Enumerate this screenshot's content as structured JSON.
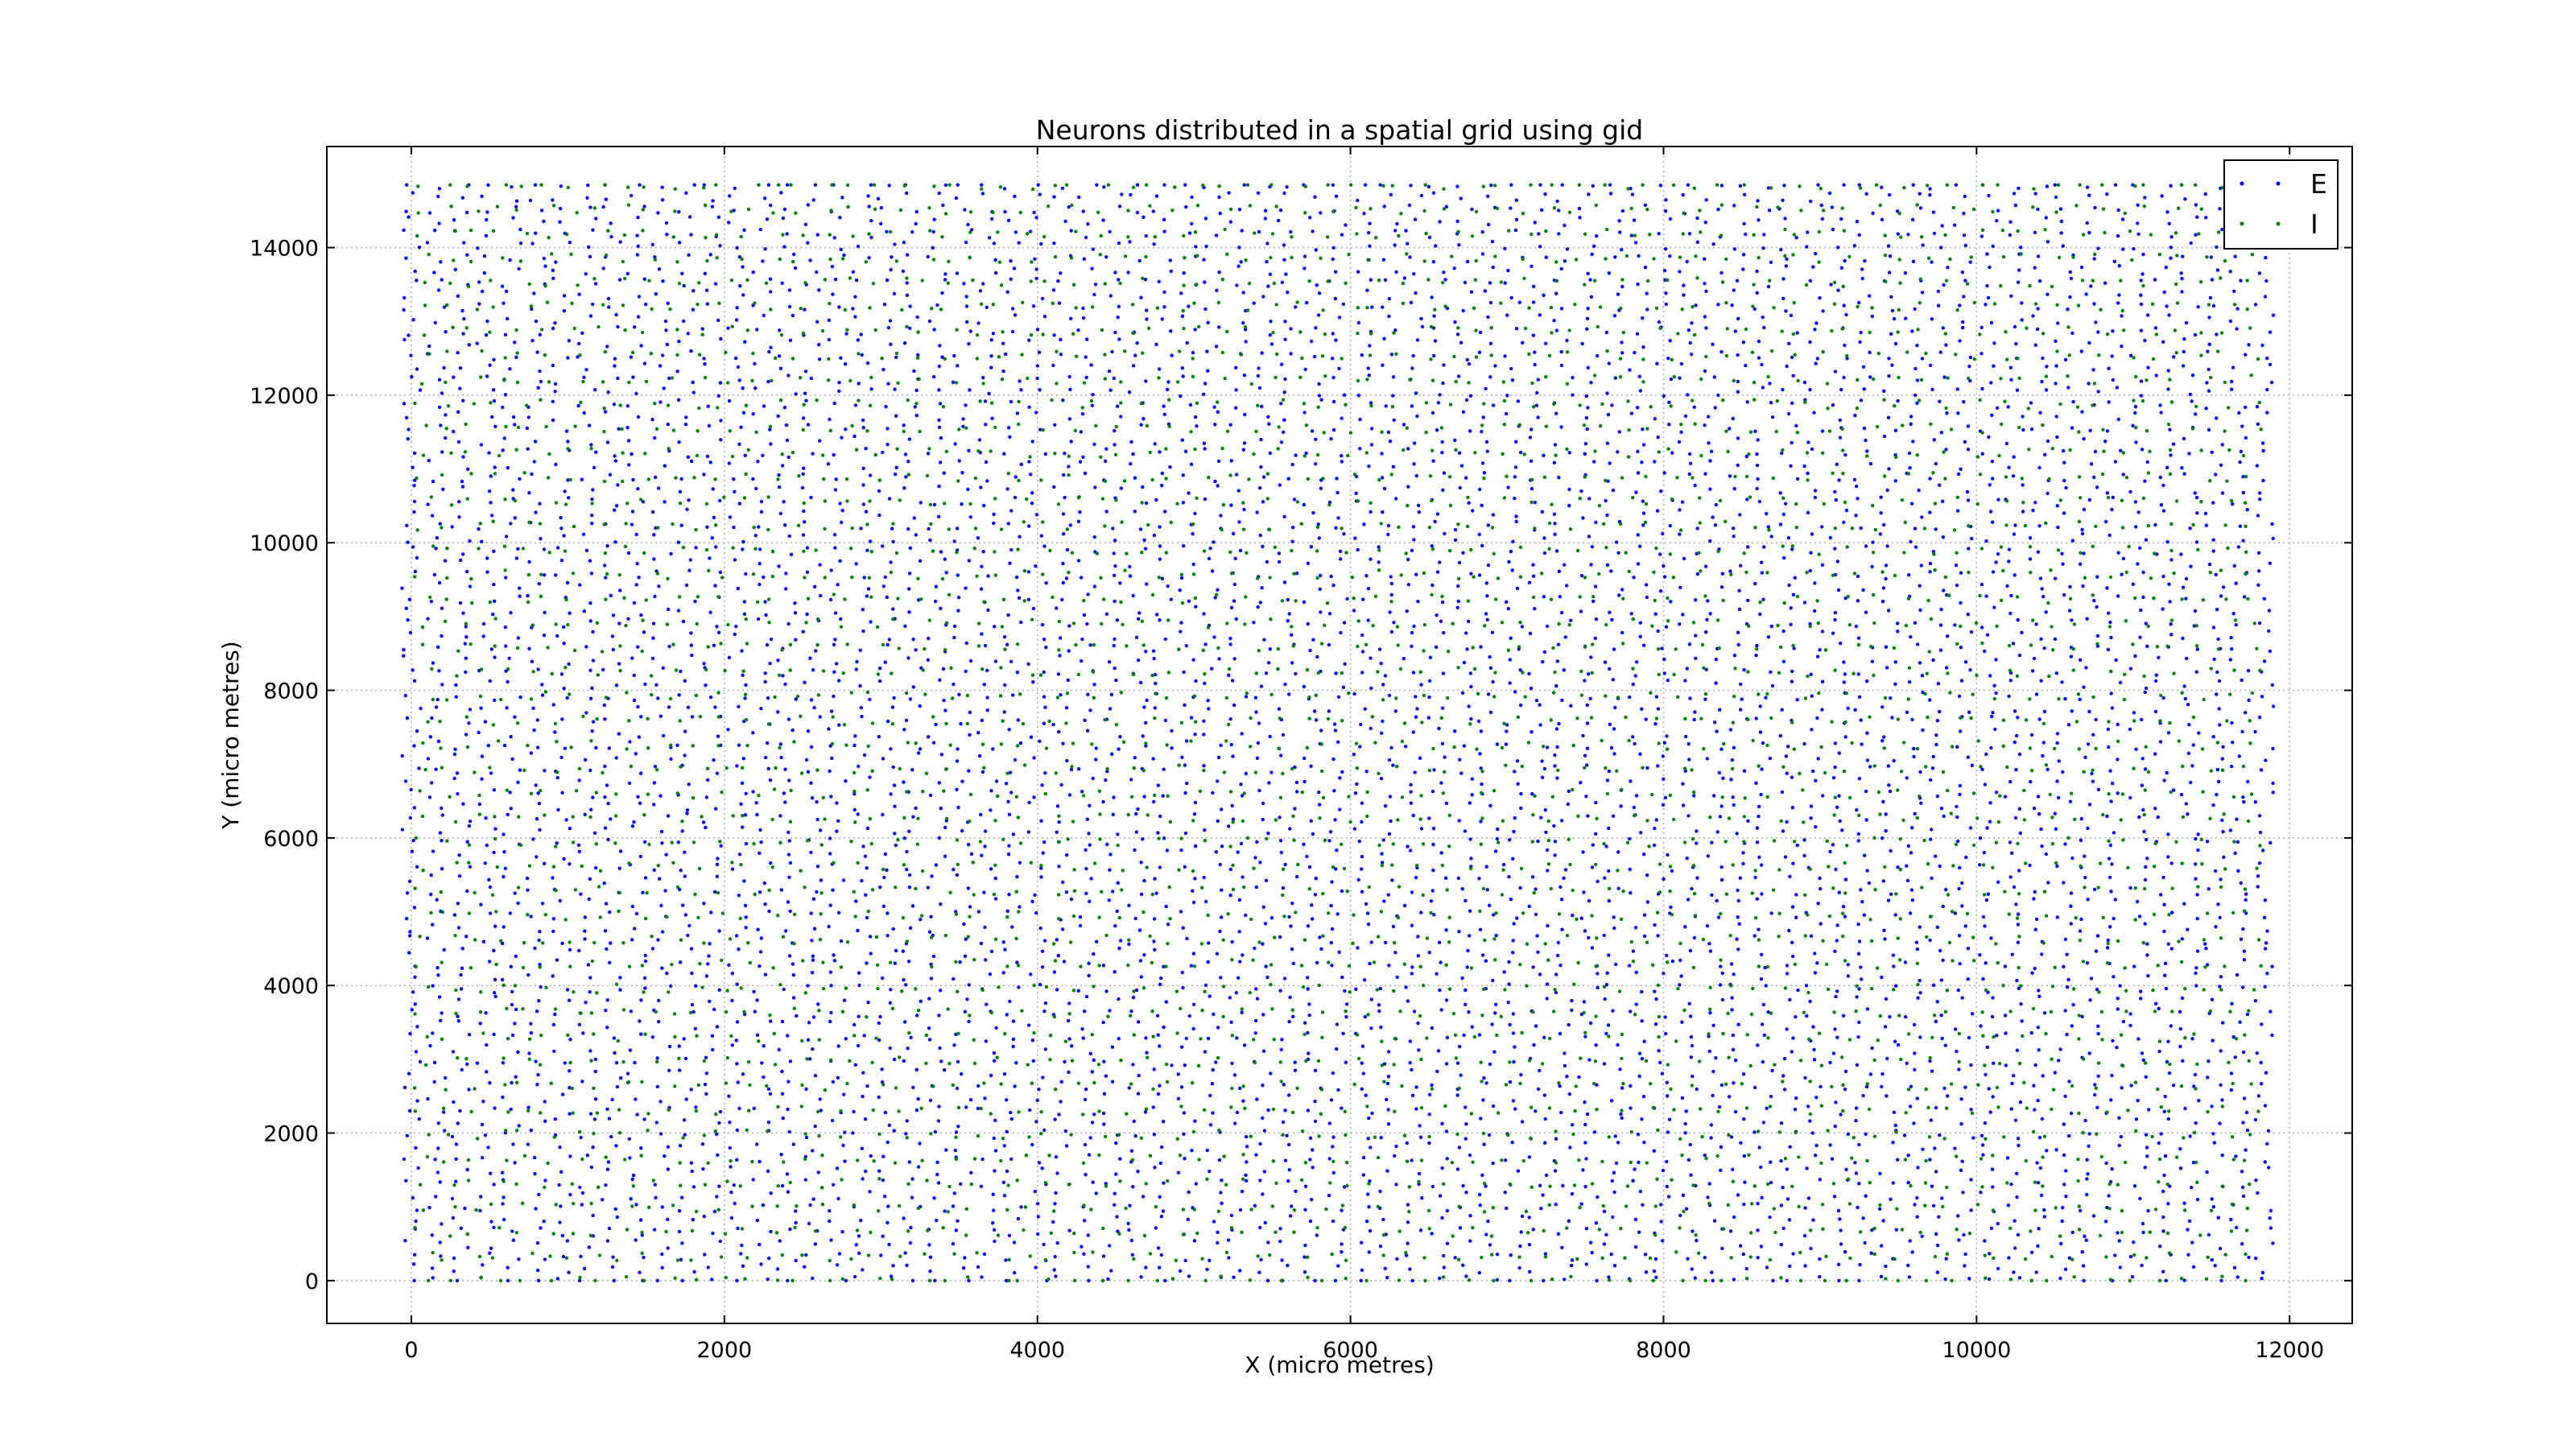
{
  "chart_data": {
    "type": "scatter",
    "title": "Neurons distributed in a spatial grid using gid",
    "xlabel": "X (micro metres)",
    "ylabel": "Y (micro metres)",
    "xlim": [
      -540,
      12400
    ],
    "ylim": [
      -580,
      15370
    ],
    "xticks": [
      0,
      2000,
      4000,
      6000,
      8000,
      10000,
      12000
    ],
    "xtick_labels": [
      "0",
      "2000",
      "4000",
      "6000",
      "8000",
      "10000",
      "12000"
    ],
    "yticks": [
      0,
      2000,
      4000,
      6000,
      8000,
      10000,
      12000,
      14000
    ],
    "ytick_labels": [
      "0",
      "2000",
      "4000",
      "6000",
      "8000",
      "10000",
      "12000",
      "14000"
    ],
    "grid": true,
    "legend_position": "top-right",
    "series": [
      {
        "name": "E",
        "color": "#0000ff",
        "marker": "point",
        "layout": "columns",
        "column_x_start": 0,
        "column_x_end": 11840,
        "column_spacing": 160,
        "y_start": 0,
        "y_end": 14850,
        "row_spacing": 165,
        "jitter": 60
      },
      {
        "name": "I",
        "color": "#008000",
        "marker": "point",
        "layout": "columns",
        "column_x_start": 80,
        "column_x_end": 11760,
        "column_spacing": 160,
        "y_start": 0,
        "y_end": 14850,
        "row_spacing": 330,
        "jitter": 60
      }
    ]
  }
}
